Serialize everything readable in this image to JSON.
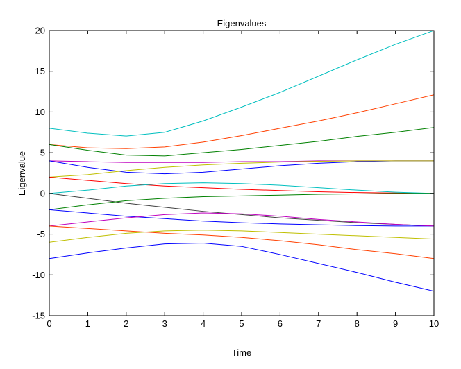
{
  "chart_data": {
    "type": "line",
    "title": "Eigenvalues",
    "xlabel": "Time",
    "ylabel": "Eigenvalue",
    "xlim": [
      0,
      10
    ],
    "ylim": [
      -15,
      20
    ],
    "x_ticks": [
      "0",
      "1",
      "2",
      "3",
      "4",
      "5",
      "6",
      "7",
      "8",
      "9",
      "10"
    ],
    "y_ticks": [
      "-15",
      "-10",
      "-5",
      "0",
      "5",
      "10",
      "15",
      "20"
    ],
    "grid": false,
    "series": [
      {
        "color": "#00bfbf",
        "x": [
          0,
          1,
          2,
          3,
          4,
          5,
          6,
          7,
          8,
          9,
          10
        ],
        "y": [
          8.0,
          7.4,
          7.05,
          7.5,
          8.9,
          10.6,
          12.4,
          14.4,
          16.4,
          18.3,
          20.0
        ]
      },
      {
        "color": "#ff4000",
        "x": [
          0,
          1,
          2,
          3,
          4,
          5,
          6,
          7,
          8,
          9,
          10
        ],
        "y": [
          6.0,
          5.6,
          5.5,
          5.7,
          6.3,
          7.1,
          8.0,
          8.9,
          9.9,
          11.0,
          12.1
        ]
      },
      {
        "color": "#008000",
        "x": [
          0,
          1,
          2,
          3,
          4,
          5,
          6,
          7,
          8,
          9,
          10
        ],
        "y": [
          6.0,
          5.3,
          4.7,
          4.6,
          5.0,
          5.4,
          5.9,
          6.4,
          7.0,
          7.5,
          8.1
        ]
      },
      {
        "color": "#bf00bf",
        "x": [
          0,
          1,
          2,
          3,
          4,
          5,
          6,
          7,
          8,
          9,
          10
        ],
        "y": [
          4.0,
          3.9,
          3.8,
          3.8,
          3.8,
          3.9,
          3.9,
          4.0,
          4.0,
          4.0,
          4.0
        ]
      },
      {
        "color": "#0000ff",
        "x": [
          0,
          1,
          2,
          3,
          4,
          5,
          6,
          7,
          8,
          9,
          10
        ],
        "y": [
          4.0,
          3.2,
          2.6,
          2.4,
          2.6,
          3.0,
          3.4,
          3.7,
          3.9,
          4.0,
          4.0
        ]
      },
      {
        "color": "#bfbf00",
        "x": [
          0,
          1,
          2,
          3,
          4,
          5,
          6,
          7,
          8,
          9,
          10
        ],
        "y": [
          2.0,
          2.3,
          2.8,
          3.2,
          3.5,
          3.7,
          3.85,
          3.95,
          4.0,
          4.0,
          4.0
        ]
      },
      {
        "color": "#ff0000",
        "x": [
          0,
          1,
          2,
          3,
          4,
          5,
          6,
          7,
          8,
          9,
          10
        ],
        "y": [
          2.0,
          1.6,
          1.2,
          0.9,
          0.7,
          0.5,
          0.35,
          0.2,
          0.1,
          0.05,
          0.0
        ]
      },
      {
        "color": "#00bfbf",
        "x": [
          0,
          1,
          2,
          3,
          4,
          5,
          6,
          7,
          8,
          9,
          10
        ],
        "y": [
          0.0,
          0.4,
          0.9,
          1.2,
          1.3,
          1.2,
          1.0,
          0.7,
          0.4,
          0.15,
          0.0
        ]
      },
      {
        "color": "#404040",
        "x": [
          0,
          1,
          2,
          3,
          4,
          5,
          6,
          7,
          8,
          9,
          10
        ],
        "y": [
          0.0,
          -0.6,
          -1.2,
          -1.7,
          -2.2,
          -2.6,
          -3.0,
          -3.3,
          -3.6,
          -3.8,
          -4.0
        ]
      },
      {
        "color": "#008000",
        "x": [
          0,
          1,
          2,
          3,
          4,
          5,
          6,
          7,
          8,
          9,
          10
        ],
        "y": [
          -2.0,
          -1.4,
          -0.9,
          -0.6,
          -0.4,
          -0.3,
          -0.2,
          -0.1,
          -0.05,
          0.0,
          0.0
        ]
      },
      {
        "color": "#0000ff",
        "x": [
          0,
          1,
          2,
          3,
          4,
          5,
          6,
          7,
          8,
          9,
          10
        ],
        "y": [
          -2.0,
          -2.4,
          -2.8,
          -3.1,
          -3.4,
          -3.6,
          -3.75,
          -3.85,
          -3.95,
          -4.0,
          -4.0
        ]
      },
      {
        "color": "#bf00bf",
        "x": [
          0,
          1,
          2,
          3,
          4,
          5,
          6,
          7,
          8,
          9,
          10
        ],
        "y": [
          -4.0,
          -3.5,
          -3.0,
          -2.6,
          -2.4,
          -2.5,
          -2.8,
          -3.2,
          -3.5,
          -3.8,
          -4.0
        ]
      },
      {
        "color": "#ff4000",
        "x": [
          0,
          1,
          2,
          3,
          4,
          5,
          6,
          7,
          8,
          9,
          10
        ],
        "y": [
          -4.0,
          -4.3,
          -4.6,
          -4.9,
          -5.1,
          -5.4,
          -5.8,
          -6.3,
          -6.9,
          -7.4,
          -8.0
        ]
      },
      {
        "color": "#bfbf00",
        "x": [
          0,
          1,
          2,
          3,
          4,
          5,
          6,
          7,
          8,
          9,
          10
        ],
        "y": [
          -6.0,
          -5.4,
          -4.9,
          -4.6,
          -4.5,
          -4.6,
          -4.8,
          -5.0,
          -5.2,
          -5.4,
          -5.6
        ]
      },
      {
        "color": "#0000ff",
        "x": [
          0,
          1,
          2,
          3,
          4,
          5,
          6,
          7,
          8,
          9,
          10
        ],
        "y": [
          -8.0,
          -7.3,
          -6.7,
          -6.2,
          -6.1,
          -6.5,
          -7.5,
          -8.6,
          -9.7,
          -10.9,
          -12.0
        ]
      }
    ]
  }
}
